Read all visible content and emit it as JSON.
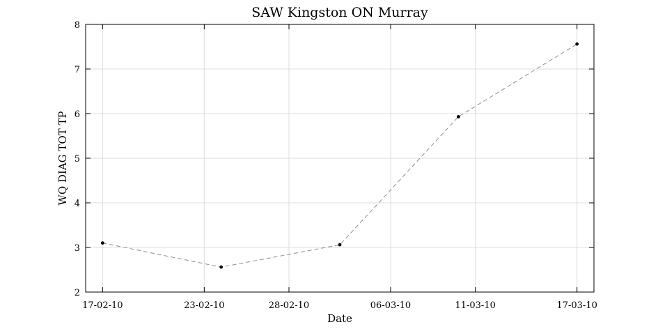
{
  "chart_data": {
    "type": "line",
    "title": "SAW Kingston ON Murray",
    "xlabel": "Date",
    "ylabel": "WQ DIAG TOT TP",
    "x_type": "date",
    "xlim": [
      "2010-02-16",
      "2010-03-18"
    ],
    "ylim": [
      2,
      8
    ],
    "x_ticks": [
      {
        "date": "2010-02-17",
        "label": "17-02-10"
      },
      {
        "date": "2010-02-23",
        "label": "23-02-10"
      },
      {
        "date": "2010-02-28",
        "label": "28-02-10"
      },
      {
        "date": "2010-03-06",
        "label": "06-03-10"
      },
      {
        "date": "2010-03-11",
        "label": "11-03-10"
      },
      {
        "date": "2010-03-17",
        "label": "17-03-10"
      }
    ],
    "y_ticks": [
      2,
      3,
      4,
      5,
      6,
      7,
      8
    ],
    "grid": true,
    "series": [
      {
        "line_style": "dashed",
        "line_color": "#8c8c8c",
        "marker_color": "#000000",
        "points": [
          {
            "x": "2010-02-17",
            "y": 3.1
          },
          {
            "x": "2010-02-24",
            "y": 2.56
          },
          {
            "x": "2010-03-03",
            "y": 3.06
          },
          {
            "x": "2010-03-10",
            "y": 5.93
          },
          {
            "x": "2010-03-17",
            "y": 7.56
          }
        ]
      }
    ]
  }
}
